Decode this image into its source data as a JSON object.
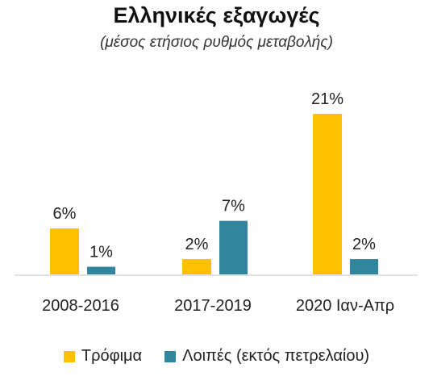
{
  "chart_data": {
    "type": "bar",
    "title": "Ελληνικές εξαγωγές",
    "subtitle": "(μέσος ετήσιος ρυθμός μεταβολής)",
    "categories": [
      "2008-2016",
      "2017-2019",
      "2020 Ιαν-Απρ"
    ],
    "series": [
      {
        "name": "Τρόφιμα",
        "color": "#FFC000",
        "values": [
          6,
          2,
          21
        ],
        "labels": [
          "6%",
          "2%",
          "21%"
        ]
      },
      {
        "name": "Λοιπές (εκτός πετρελαίου)",
        "color": "#31859C",
        "values": [
          1,
          7,
          2
        ],
        "labels": [
          "1%",
          "7%",
          "2%"
        ]
      }
    ],
    "ylim": [
      0,
      21
    ],
    "grid": false,
    "legend_position": "bottom",
    "xlabel": "",
    "ylabel": ""
  }
}
